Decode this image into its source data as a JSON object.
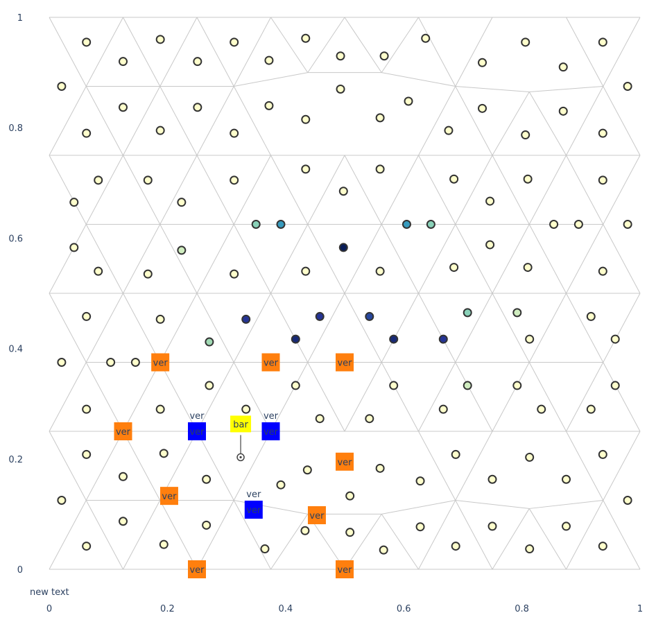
{
  "chart_data": {
    "type": "scatter",
    "title": "",
    "xlabel": "",
    "ylabel": "",
    "xlim": [
      0,
      1
    ],
    "ylim": [
      0,
      1
    ],
    "x_ticks": [
      "0",
      "0.2",
      "0.4",
      "0.6",
      "0.8",
      "1"
    ],
    "y_ticks": [
      "0",
      "0.2",
      "0.4",
      "0.6",
      "0.8",
      "1"
    ],
    "grid": false,
    "colors": {
      "mesh": "#c8c8c8",
      "default_point": "#ffffcc",
      "point_outline": "#333333",
      "square_orange": "#ff7f0e",
      "square_blue": "#0000ff",
      "label_yellow": "#ffff00"
    },
    "mesh_nodes": [
      [
        0,
        0
      ],
      [
        0.125,
        0
      ],
      [
        0.25,
        0
      ],
      [
        0.375,
        0
      ],
      [
        0.5,
        0
      ],
      [
        0.625,
        0
      ],
      [
        0.75,
        0
      ],
      [
        0.875,
        0
      ],
      [
        1,
        0
      ],
      [
        0,
        0.25
      ],
      [
        0.125,
        0.25
      ],
      [
        0.25,
        0.25
      ],
      [
        0.375,
        0.25
      ],
      [
        0.5,
        0.25
      ],
      [
        0.625,
        0.25
      ],
      [
        0.75,
        0.25
      ],
      [
        0.875,
        0.25
      ],
      [
        1,
        0.25
      ],
      [
        0,
        0.5
      ],
      [
        0.125,
        0.5
      ],
      [
        0.25,
        0.5
      ],
      [
        0.375,
        0.5
      ],
      [
        0.5,
        0.5
      ],
      [
        0.625,
        0.5
      ],
      [
        0.75,
        0.5
      ],
      [
        0.875,
        0.5
      ],
      [
        1,
        0.5
      ],
      [
        0,
        0.75
      ],
      [
        0.125,
        0.75
      ],
      [
        0.25,
        0.75
      ],
      [
        0.375,
        0.75
      ],
      [
        0.5,
        0.75
      ],
      [
        0.625,
        0.75
      ],
      [
        0.75,
        0.75
      ],
      [
        0.875,
        0.75
      ],
      [
        1,
        0.75
      ],
      [
        0,
        1
      ],
      [
        0.125,
        1
      ],
      [
        0.25,
        1
      ],
      [
        0.375,
        1
      ],
      [
        0.5,
        1
      ],
      [
        0.625,
        1
      ],
      [
        0.75,
        1
      ],
      [
        0.875,
        1
      ],
      [
        1,
        1
      ],
      [
        0.0625,
        0.125
      ],
      [
        0.1875,
        0.125
      ],
      [
        0.3125,
        0.125
      ],
      [
        0.4375,
        0.1
      ],
      [
        0.5625,
        0.1
      ],
      [
        0.6875,
        0.125
      ],
      [
        0.8125,
        0.11
      ],
      [
        0.9375,
        0.125
      ],
      [
        0.0625,
        0.375
      ],
      [
        0.1875,
        0.375
      ],
      [
        0.3125,
        0.375
      ],
      [
        0.4375,
        0.375
      ],
      [
        0.5625,
        0.375
      ],
      [
        0.6875,
        0.375
      ],
      [
        0.8125,
        0.375
      ],
      [
        0.9375,
        0.375
      ],
      [
        0.0625,
        0.625
      ],
      [
        0.1875,
        0.625
      ],
      [
        0.3125,
        0.625
      ],
      [
        0.4375,
        0.625
      ],
      [
        0.5625,
        0.625
      ],
      [
        0.6875,
        0.625
      ],
      [
        0.8125,
        0.625
      ],
      [
        0.9375,
        0.625
      ],
      [
        0.0625,
        0.875
      ],
      [
        0.1875,
        0.875
      ],
      [
        0.3125,
        0.875
      ],
      [
        0.4375,
        0.9
      ],
      [
        0.5625,
        0.9
      ],
      [
        0.6875,
        0.875
      ],
      [
        0.8125,
        0.865
      ],
      [
        0.9375,
        0.875
      ]
    ],
    "points": [
      {
        "x": 0.063,
        "y": 0.955,
        "v": 0
      },
      {
        "x": 0.125,
        "y": 0.92,
        "v": 0
      },
      {
        "x": 0.188,
        "y": 0.96,
        "v": 0
      },
      {
        "x": 0.251,
        "y": 0.92,
        "v": 0
      },
      {
        "x": 0.313,
        "y": 0.955,
        "v": 0
      },
      {
        "x": 0.372,
        "y": 0.922,
        "v": 0
      },
      {
        "x": 0.434,
        "y": 0.962,
        "v": 0
      },
      {
        "x": 0.493,
        "y": 0.93,
        "v": 0
      },
      {
        "x": 0.567,
        "y": 0.93,
        "v": 0
      },
      {
        "x": 0.637,
        "y": 0.962,
        "v": 0
      },
      {
        "x": 0.733,
        "y": 0.918,
        "v": 0
      },
      {
        "x": 0.806,
        "y": 0.955,
        "v": 0
      },
      {
        "x": 0.87,
        "y": 0.91,
        "v": 0
      },
      {
        "x": 0.937,
        "y": 0.955,
        "v": 0
      },
      {
        "x": 0.021,
        "y": 0.875,
        "v": 0
      },
      {
        "x": 0.125,
        "y": 0.837,
        "v": 0
      },
      {
        "x": 0.251,
        "y": 0.837,
        "v": 0
      },
      {
        "x": 0.372,
        "y": 0.84,
        "v": 0
      },
      {
        "x": 0.493,
        "y": 0.87,
        "v": 0
      },
      {
        "x": 0.608,
        "y": 0.848,
        "v": 0
      },
      {
        "x": 0.733,
        "y": 0.835,
        "v": 0
      },
      {
        "x": 0.87,
        "y": 0.83,
        "v": 0
      },
      {
        "x": 0.979,
        "y": 0.875,
        "v": 0
      },
      {
        "x": 0.063,
        "y": 0.79,
        "v": 0
      },
      {
        "x": 0.188,
        "y": 0.795,
        "v": 0
      },
      {
        "x": 0.313,
        "y": 0.79,
        "v": 0
      },
      {
        "x": 0.434,
        "y": 0.815,
        "v": 0
      },
      {
        "x": 0.56,
        "y": 0.818,
        "v": 0
      },
      {
        "x": 0.676,
        "y": 0.795,
        "v": 0
      },
      {
        "x": 0.806,
        "y": 0.787,
        "v": 0
      },
      {
        "x": 0.937,
        "y": 0.79,
        "v": 0
      },
      {
        "x": 0.083,
        "y": 0.705,
        "v": 0
      },
      {
        "x": 0.167,
        "y": 0.705,
        "v": 0
      },
      {
        "x": 0.313,
        "y": 0.705,
        "v": 0
      },
      {
        "x": 0.434,
        "y": 0.725,
        "v": 0
      },
      {
        "x": 0.56,
        "y": 0.725,
        "v": 0
      },
      {
        "x": 0.685,
        "y": 0.707,
        "v": 0
      },
      {
        "x": 0.81,
        "y": 0.707,
        "v": 0
      },
      {
        "x": 0.937,
        "y": 0.705,
        "v": 0
      },
      {
        "x": 0.042,
        "y": 0.665,
        "v": 0
      },
      {
        "x": 0.224,
        "y": 0.665,
        "v": 0
      },
      {
        "x": 0.498,
        "y": 0.685,
        "v": 0
      },
      {
        "x": 0.746,
        "y": 0.667,
        "v": 0
      },
      {
        "x": 0.979,
        "y": 0.625,
        "v": 0
      },
      {
        "x": 0.854,
        "y": 0.625,
        "v": 0
      },
      {
        "x": 0.896,
        "y": 0.625,
        "v": 0
      },
      {
        "x": 0.35,
        "y": 0.625,
        "v": 0.25
      },
      {
        "x": 0.392,
        "y": 0.625,
        "v": 0.5
      },
      {
        "x": 0.605,
        "y": 0.625,
        "v": 0.5
      },
      {
        "x": 0.646,
        "y": 0.625,
        "v": 0.25
      },
      {
        "x": 0.042,
        "y": 0.583,
        "v": 0
      },
      {
        "x": 0.224,
        "y": 0.578,
        "v": 0.1
      },
      {
        "x": 0.498,
        "y": 0.583,
        "v": 1
      },
      {
        "x": 0.746,
        "y": 0.588,
        "v": 0
      },
      {
        "x": 0.083,
        "y": 0.54,
        "v": 0
      },
      {
        "x": 0.167,
        "y": 0.535,
        "v": 0
      },
      {
        "x": 0.313,
        "y": 0.535,
        "v": 0
      },
      {
        "x": 0.434,
        "y": 0.54,
        "v": 0
      },
      {
        "x": 0.56,
        "y": 0.54,
        "v": 0
      },
      {
        "x": 0.685,
        "y": 0.547,
        "v": 0
      },
      {
        "x": 0.81,
        "y": 0.547,
        "v": 0
      },
      {
        "x": 0.937,
        "y": 0.54,
        "v": 0
      },
      {
        "x": 0.063,
        "y": 0.458,
        "v": 0
      },
      {
        "x": 0.188,
        "y": 0.453,
        "v": 0
      },
      {
        "x": 0.333,
        "y": 0.453,
        "v": 0.8
      },
      {
        "x": 0.458,
        "y": 0.458,
        "v": 0.8
      },
      {
        "x": 0.542,
        "y": 0.458,
        "v": 0.75
      },
      {
        "x": 0.708,
        "y": 0.465,
        "v": 0.25
      },
      {
        "x": 0.792,
        "y": 0.465,
        "v": 0.1
      },
      {
        "x": 0.917,
        "y": 0.458,
        "v": 0
      },
      {
        "x": 0.271,
        "y": 0.412,
        "v": 0.2
      },
      {
        "x": 0.417,
        "y": 0.417,
        "v": 0.9
      },
      {
        "x": 0.583,
        "y": 0.417,
        "v": 0.9
      },
      {
        "x": 0.667,
        "y": 0.417,
        "v": 0.8
      },
      {
        "x": 0.813,
        "y": 0.417,
        "v": 0
      },
      {
        "x": 0.958,
        "y": 0.417,
        "v": 0
      },
      {
        "x": 0.021,
        "y": 0.375,
        "v": 0
      },
      {
        "x": 0.104,
        "y": 0.375,
        "v": 0
      },
      {
        "x": 0.146,
        "y": 0.375,
        "v": 0
      },
      {
        "x": 0.271,
        "y": 0.333,
        "v": 0
      },
      {
        "x": 0.417,
        "y": 0.333,
        "v": 0
      },
      {
        "x": 0.583,
        "y": 0.333,
        "v": 0
      },
      {
        "x": 0.708,
        "y": 0.333,
        "v": 0.1
      },
      {
        "x": 0.792,
        "y": 0.333,
        "v": 0
      },
      {
        "x": 0.958,
        "y": 0.333,
        "v": 0
      },
      {
        "x": 0.063,
        "y": 0.29,
        "v": 0
      },
      {
        "x": 0.188,
        "y": 0.29,
        "v": 0
      },
      {
        "x": 0.333,
        "y": 0.29,
        "v": 0
      },
      {
        "x": 0.458,
        "y": 0.273,
        "v": 0
      },
      {
        "x": 0.542,
        "y": 0.273,
        "v": 0
      },
      {
        "x": 0.667,
        "y": 0.29,
        "v": 0
      },
      {
        "x": 0.833,
        "y": 0.29,
        "v": 0
      },
      {
        "x": 0.917,
        "y": 0.29,
        "v": 0
      },
      {
        "x": 0.063,
        "y": 0.208,
        "v": 0
      },
      {
        "x": 0.194,
        "y": 0.21,
        "v": 0
      },
      {
        "x": 0.688,
        "y": 0.208,
        "v": 0
      },
      {
        "x": 0.813,
        "y": 0.203,
        "v": 0
      },
      {
        "x": 0.937,
        "y": 0.208,
        "v": 0
      },
      {
        "x": 0.437,
        "y": 0.18,
        "v": 0
      },
      {
        "x": 0.56,
        "y": 0.183,
        "v": 0
      },
      {
        "x": 0.125,
        "y": 0.168,
        "v": 0
      },
      {
        "x": 0.266,
        "y": 0.163,
        "v": 0
      },
      {
        "x": 0.392,
        "y": 0.153,
        "v": 0
      },
      {
        "x": 0.628,
        "y": 0.16,
        "v": 0
      },
      {
        "x": 0.75,
        "y": 0.163,
        "v": 0
      },
      {
        "x": 0.875,
        "y": 0.163,
        "v": 0
      },
      {
        "x": 0.509,
        "y": 0.133,
        "v": 0
      },
      {
        "x": 0.021,
        "y": 0.125,
        "v": 0
      },
      {
        "x": 0.979,
        "y": 0.125,
        "v": 0
      },
      {
        "x": 0.125,
        "y": 0.087,
        "v": 0
      },
      {
        "x": 0.266,
        "y": 0.08,
        "v": 0
      },
      {
        "x": 0.433,
        "y": 0.07,
        "v": 0
      },
      {
        "x": 0.509,
        "y": 0.067,
        "v": 0
      },
      {
        "x": 0.628,
        "y": 0.077,
        "v": 0
      },
      {
        "x": 0.75,
        "y": 0.078,
        "v": 0
      },
      {
        "x": 0.875,
        "y": 0.078,
        "v": 0
      },
      {
        "x": 0.063,
        "y": 0.042,
        "v": 0
      },
      {
        "x": 0.194,
        "y": 0.045,
        "v": 0
      },
      {
        "x": 0.365,
        "y": 0.037,
        "v": 0
      },
      {
        "x": 0.566,
        "y": 0.035,
        "v": 0
      },
      {
        "x": 0.688,
        "y": 0.042,
        "v": 0
      },
      {
        "x": 0.813,
        "y": 0.037,
        "v": 0
      },
      {
        "x": 0.937,
        "y": 0.042,
        "v": 0
      }
    ],
    "colorscale": [
      "#ffffcc",
      "#a1dab4",
      "#41b6c4",
      "#2c7fb8",
      "#253494",
      "#081d58"
    ],
    "orange_squares": [
      {
        "x": 0.188,
        "y": 0.375,
        "label": "ver"
      },
      {
        "x": 0.375,
        "y": 0.375,
        "label": "ver"
      },
      {
        "x": 0.5,
        "y": 0.375,
        "label": "ver"
      },
      {
        "x": 0.125,
        "y": 0.25,
        "label": "ver"
      },
      {
        "x": 0.5,
        "y": 0.195,
        "label": "ver"
      },
      {
        "x": 0.203,
        "y": 0.133,
        "label": "ver"
      },
      {
        "x": 0.453,
        "y": 0.098,
        "label": "ver"
      },
      {
        "x": 0.25,
        "y": 0,
        "label": "ver"
      },
      {
        "x": 0.5,
        "y": 0,
        "label": "ver"
      }
    ],
    "blue_squares": [
      {
        "x": 0.25,
        "y": 0.25,
        "label": "ver",
        "above": "ver"
      },
      {
        "x": 0.375,
        "y": 0.25,
        "label": "ver",
        "above": "ver"
      },
      {
        "x": 0.346,
        "y": 0.108,
        "label": "ver",
        "above": "ver"
      }
    ],
    "callout": {
      "x": 0.324,
      "y": 0.203,
      "label": "bar"
    },
    "annotation": "new text"
  }
}
